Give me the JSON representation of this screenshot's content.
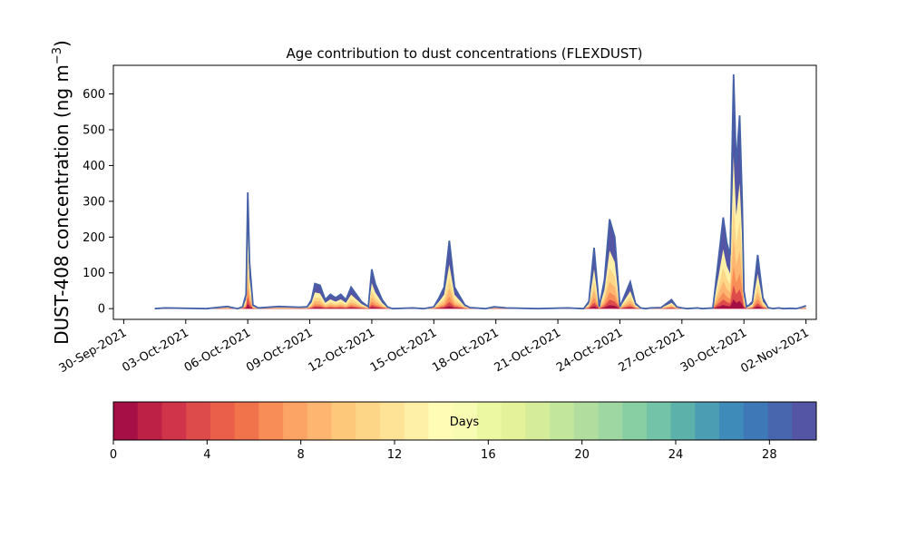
{
  "chart_data": {
    "type": "area",
    "title": "Age contribution to dust concentrations (FLEXDUST)",
    "ylabel": "DUST-408 concentration (ng m⁻³)",
    "ylabel_main": "DUST-408 concentration (ng m",
    "ylabel_sup": "−3",
    "ylabel_close": ")",
    "xlabel": "",
    "ylim": [
      -30,
      680
    ],
    "yticks": [
      0,
      100,
      200,
      300,
      400,
      500,
      600
    ],
    "xlim": [
      "2021-09-29T12:00",
      "2021-11-02T12:00"
    ],
    "xticks": [
      "2021-09-30",
      "2021-10-03",
      "2021-10-06",
      "2021-10-09",
      "2021-10-12",
      "2021-10-15",
      "2021-10-18",
      "2021-10-21",
      "2021-10-24",
      "2021-10-27",
      "2021-10-30",
      "2021-11-02"
    ],
    "xticklabels": [
      "30-Sep-2021",
      "03-Oct-2021",
      "06-Oct-2021",
      "09-Oct-2021",
      "12-Oct-2021",
      "15-Oct-2021",
      "18-Oct-2021",
      "21-Oct-2021",
      "24-Oct-2021",
      "27-Oct-2021",
      "30-Oct-2021",
      "02-Nov-2021"
    ],
    "grid": false,
    "total": {
      "x": [
        "2021-10-01T12:00",
        "2021-10-02T00:00",
        "2021-10-04T00:00",
        "2021-10-05T00:00",
        "2021-10-05T12:00",
        "2021-10-05T18:00",
        "2021-10-05T22:00",
        "2021-10-06T00:00",
        "2021-10-06T02:00",
        "2021-10-06T06:00",
        "2021-10-06T12:00",
        "2021-10-07T12:00",
        "2021-10-08T12:00",
        "2021-10-08T21:00",
        "2021-10-09T02:00",
        "2021-10-09T06:00",
        "2021-10-09T12:00",
        "2021-10-09T18:00",
        "2021-10-10T00:00",
        "2021-10-10T06:00",
        "2021-10-10T12:00",
        "2021-10-10T18:00",
        "2021-10-11T00:00",
        "2021-10-11T06:00",
        "2021-10-11T12:00",
        "2021-10-11T20:00",
        "2021-10-12T00:00",
        "2021-10-12T04:00",
        "2021-10-12T12:00",
        "2021-10-12T18:00",
        "2021-10-13T00:00",
        "2021-10-14T00:00",
        "2021-10-14T12:00",
        "2021-10-15T00:00",
        "2021-10-15T06:00",
        "2021-10-15T12:00",
        "2021-10-15T18:00",
        "2021-10-16T00:00",
        "2021-10-16T12:00",
        "2021-10-16T18:00",
        "2021-10-17T12:00",
        "2021-10-17T22:00",
        "2021-10-18T12:00",
        "2021-10-20T00:00",
        "2021-10-21T12:00",
        "2021-10-22T06:00",
        "2021-10-22T12:00",
        "2021-10-22T18:00",
        "2021-10-23T00:00",
        "2021-10-23T06:00",
        "2021-10-23T12:00",
        "2021-10-23T18:00",
        "2021-10-24T00:00",
        "2021-10-24T06:00",
        "2021-10-24T12:00",
        "2021-10-24T18:00",
        "2021-10-25T00:00",
        "2021-10-25T06:00",
        "2021-10-25T12:00",
        "2021-10-26T00:00",
        "2021-10-26T12:00",
        "2021-10-26T18:00",
        "2021-10-27T00:00",
        "2021-10-27T06:00",
        "2021-10-27T12:00",
        "2021-10-27T18:00",
        "2021-10-28T00:00",
        "2021-10-28T12:00",
        "2021-10-29T00:00",
        "2021-10-29T04:00",
        "2021-10-29T08:00",
        "2021-10-29T12:00",
        "2021-10-29T15:00",
        "2021-10-29T19:00",
        "2021-10-29T22:00",
        "2021-10-30T00:00",
        "2021-10-30T03:00",
        "2021-10-30T06:00",
        "2021-10-30T10:00",
        "2021-10-30T16:00",
        "2021-10-30T22:00",
        "2021-10-31T04:00",
        "2021-10-31T10:00",
        "2021-10-31T16:00",
        "2021-10-31T22:00",
        "2021-11-01T06:00",
        "2021-11-01T12:00",
        "2021-11-01T18:00",
        "2021-11-02T00:00"
      ],
      "y": [
        0,
        2,
        0,
        6,
        0,
        5,
        40,
        325,
        130,
        10,
        2,
        6,
        4,
        5,
        25,
        70,
        65,
        25,
        40,
        30,
        40,
        25,
        60,
        40,
        20,
        5,
        110,
        70,
        25,
        5,
        0,
        2,
        0,
        5,
        30,
        60,
        190,
        60,
        10,
        3,
        0,
        5,
        2,
        0,
        2,
        0,
        20,
        170,
        5,
        80,
        250,
        200,
        5,
        40,
        75,
        15,
        2,
        0,
        2,
        3,
        25,
        5,
        2,
        0,
        1,
        2,
        0,
        2,
        255,
        185,
        150,
        655,
        400,
        540,
        300,
        50,
        5,
        10,
        20,
        150,
        30,
        3,
        0,
        2,
        0,
        1,
        0,
        3,
        8
      ]
    },
    "color_scale": {
      "label": "Days",
      "min": 0,
      "max": 30,
      "ticks": [
        0,
        4,
        8,
        12,
        16,
        20,
        24,
        28
      ],
      "colors": [
        "#a50f45",
        "#bd2145",
        "#d0344a",
        "#de4b4b",
        "#e95f4a",
        "#f1734b",
        "#f88d57",
        "#fba465",
        "#fdb56f",
        "#fec87a",
        "#fed687",
        "#fee296",
        "#fff0a8",
        "#fffcb6",
        "#f8fcb3",
        "#edf8a2",
        "#e4f39a",
        "#d5ed9b",
        "#c3e69d",
        "#b1de9f",
        "#9fd7a3",
        "#88cfa4",
        "#72c3a7",
        "#5db1ab",
        "#4a9db3",
        "#3e8ab9",
        "#3f78b7",
        "#4866ad",
        "#5455a4"
      ]
    },
    "line_color": "#4461a8",
    "text": {
      "ylabel_main": "DUST-408 concentration (ng m",
      "ylabel_sup": "−3",
      "ylabel_close": ")"
    }
  }
}
